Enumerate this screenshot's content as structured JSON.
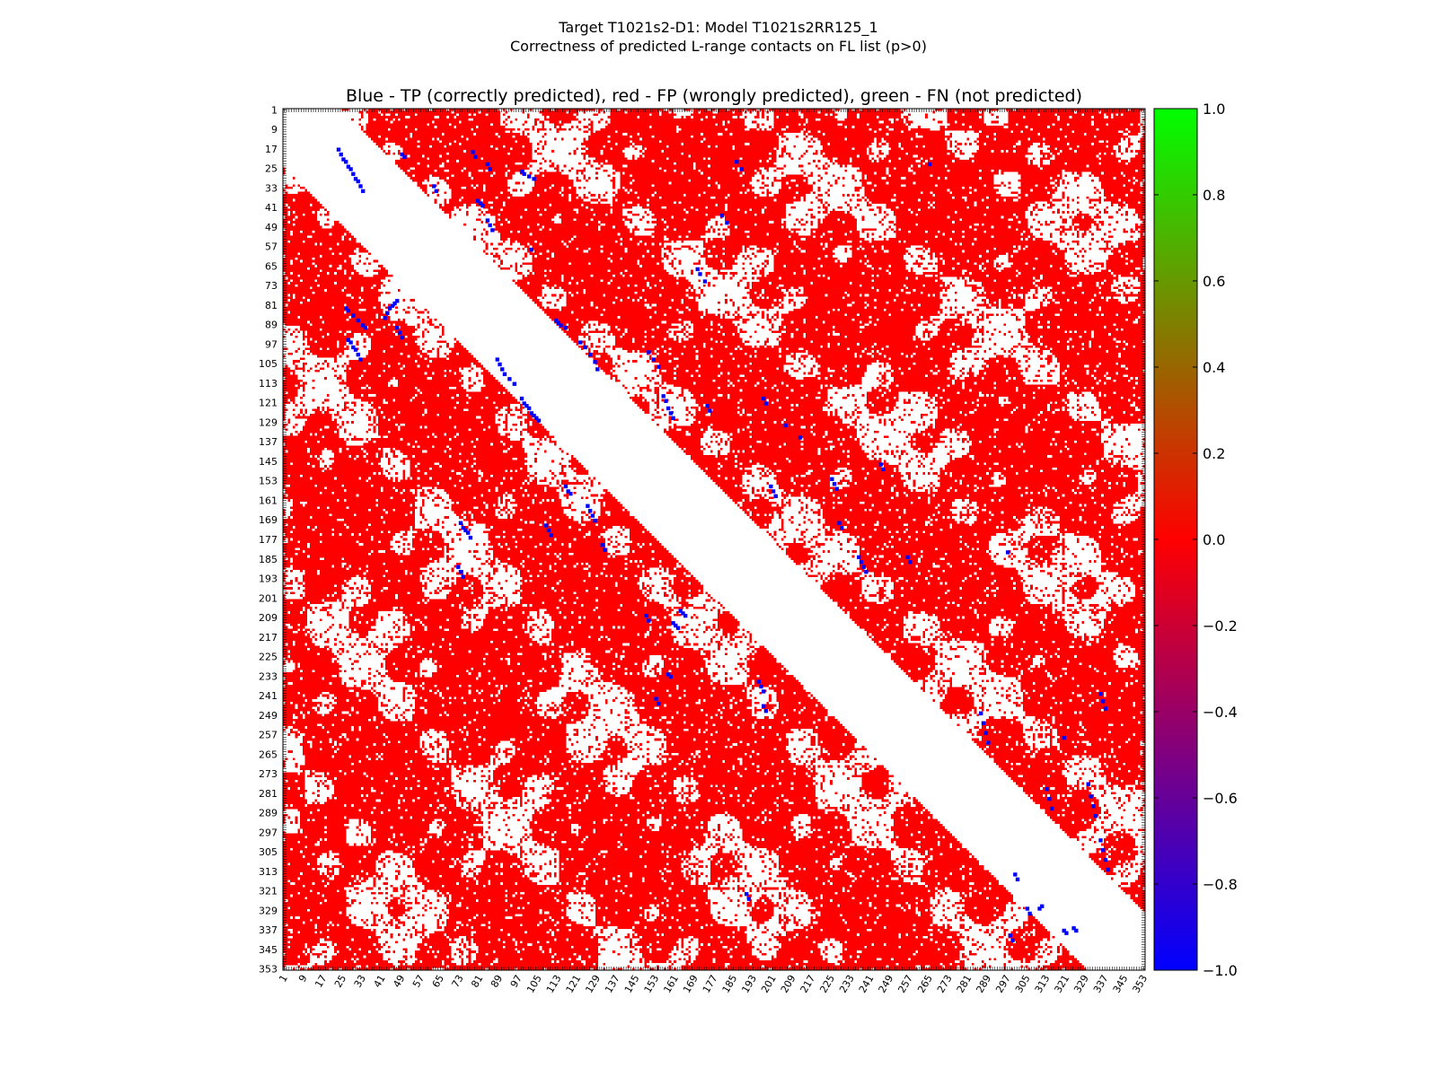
{
  "figure": {
    "title_line1": "Target T1021s2-D1: Model T1021s2RR125_1",
    "title_line2": "Correctness of predicted L-range contacts on FL list (p>0)"
  },
  "chart_data": {
    "type": "heatmap",
    "title": "Blue - TP (correctly predicted), red - FP (wrongly predicted), green - FN (not predicted)",
    "xlabel": "",
    "ylabel": "",
    "n_residues": 353,
    "x_range": [
      1,
      353
    ],
    "y_range": [
      1,
      353
    ],
    "y_inverted": true,
    "tick_labels": [
      "1",
      "9",
      "17",
      "25",
      "33",
      "41",
      "49",
      "57",
      "65",
      "73",
      "81",
      "89",
      "97",
      "105",
      "113",
      "121",
      "129",
      "137",
      "145",
      "153",
      "161",
      "169",
      "177",
      "185",
      "193",
      "201",
      "209",
      "217",
      "225",
      "233",
      "241",
      "249",
      "257",
      "265",
      "273",
      "281",
      "289",
      "297",
      "305",
      "313",
      "321",
      "329",
      "337",
      "345",
      "353"
    ],
    "colorbar": {
      "range": [
        -1.0,
        1.0
      ],
      "ticks": [
        "1.0",
        "0.8",
        "0.6",
        "0.4",
        "0.2",
        "0.0",
        "−0.2",
        "−0.4",
        "−0.6",
        "−0.8",
        "−1.0"
      ],
      "colors": [
        "#0000ff",
        "#ff0000",
        "#00ff00"
      ]
    },
    "categories": [
      {
        "label": "TP",
        "value": -1,
        "color": "#0000ff"
      },
      {
        "label": "FP",
        "value": 0,
        "color": "#ff0000"
      },
      {
        "label": "FN",
        "value": 1,
        "color": "#00ff00"
      }
    ],
    "grid": false,
    "excluded_band": {
      "min_separation": 24,
      "side": "both triangles"
    },
    "tp_contacts": [
      [
        23,
        17
      ],
      [
        24,
        19
      ],
      [
        25,
        21
      ],
      [
        26,
        22
      ],
      [
        27,
        24
      ],
      [
        28,
        25
      ],
      [
        29,
        27
      ],
      [
        30,
        29
      ],
      [
        31,
        30
      ],
      [
        32,
        32
      ],
      [
        33,
        34
      ],
      [
        26,
        82
      ],
      [
        27,
        83
      ],
      [
        29,
        85
      ],
      [
        31,
        87
      ],
      [
        33,
        89
      ],
      [
        34,
        90
      ],
      [
        27,
        95
      ],
      [
        28,
        96
      ],
      [
        29,
        98
      ],
      [
        30,
        99
      ],
      [
        31,
        101
      ],
      [
        32,
        103
      ],
      [
        42,
        86
      ],
      [
        43,
        84
      ],
      [
        44,
        82
      ],
      [
        45,
        81
      ],
      [
        46,
        80
      ],
      [
        47,
        79
      ],
      [
        47,
        90
      ],
      [
        48,
        92
      ],
      [
        49,
        94
      ],
      [
        73,
        170
      ],
      [
        74,
        172
      ],
      [
        75,
        173
      ],
      [
        76,
        174
      ],
      [
        77,
        176
      ],
      [
        72,
        188
      ],
      [
        73,
        190
      ],
      [
        74,
        192
      ],
      [
        88,
        103
      ],
      [
        89,
        105
      ],
      [
        90,
        107
      ],
      [
        91,
        109
      ],
      [
        93,
        111
      ],
      [
        95,
        113
      ],
      [
        98,
        119
      ],
      [
        99,
        121
      ],
      [
        100,
        122
      ],
      [
        101,
        123
      ],
      [
        102,
        125
      ],
      [
        103,
        126
      ],
      [
        104,
        127
      ],
      [
        105,
        128
      ],
      [
        108,
        171
      ],
      [
        109,
        173
      ],
      [
        110,
        175
      ],
      [
        116,
        155
      ],
      [
        117,
        157
      ],
      [
        118,
        158
      ],
      [
        125,
        163
      ],
      [
        126,
        165
      ],
      [
        127,
        167
      ],
      [
        128,
        169
      ],
      [
        131,
        179
      ],
      [
        132,
        181
      ],
      [
        149,
        208
      ],
      [
        150,
        210
      ],
      [
        153,
        242
      ],
      [
        154,
        244
      ],
      [
        160,
        211
      ],
      [
        161,
        212
      ],
      [
        162,
        213
      ],
      [
        158,
        232
      ],
      [
        159,
        233
      ],
      [
        163,
        206
      ],
      [
        164,
        207
      ],
      [
        165,
        208
      ],
      [
        195,
        235
      ],
      [
        196,
        237
      ],
      [
        197,
        239
      ],
      [
        197,
        245
      ],
      [
        198,
        247
      ],
      [
        190,
        322
      ],
      [
        191,
        324
      ],
      [
        300,
        314
      ],
      [
        301,
        316
      ],
      [
        305,
        328
      ],
      [
        306,
        330
      ],
      [
        310,
        328
      ],
      [
        311,
        327
      ],
      [
        298,
        339
      ],
      [
        299,
        341
      ],
      [
        320,
        337
      ],
      [
        321,
        338
      ],
      [
        324,
        336
      ],
      [
        325,
        337
      ],
      [
        49,
        19
      ],
      [
        50,
        20
      ],
      [
        62,
        32
      ],
      [
        63,
        34
      ],
      [
        78,
        18
      ],
      [
        79,
        20
      ],
      [
        80,
        38
      ],
      [
        81,
        39
      ],
      [
        82,
        40
      ],
      [
        84,
        23
      ],
      [
        85,
        25
      ],
      [
        84,
        46
      ],
      [
        85,
        48
      ],
      [
        86,
        50
      ],
      [
        98,
        26
      ],
      [
        99,
        27
      ],
      [
        101,
        28
      ],
      [
        103,
        29
      ],
      [
        102,
        58
      ],
      [
        112,
        87
      ],
      [
        113,
        88
      ],
      [
        114,
        89
      ],
      [
        116,
        90
      ],
      [
        122,
        96
      ],
      [
        124,
        98
      ],
      [
        126,
        101
      ],
      [
        128,
        104
      ],
      [
        129,
        107
      ],
      [
        150,
        100
      ],
      [
        152,
        103
      ],
      [
        154,
        106
      ],
      [
        156,
        118
      ],
      [
        157,
        120
      ],
      [
        158,
        123
      ],
      [
        159,
        125
      ],
      [
        160,
        127
      ],
      [
        170,
        66
      ],
      [
        171,
        68
      ],
      [
        173,
        71
      ],
      [
        174,
        122
      ],
      [
        175,
        124
      ],
      [
        180,
        44
      ],
      [
        182,
        47
      ],
      [
        186,
        22
      ],
      [
        188,
        25
      ],
      [
        197,
        119
      ],
      [
        198,
        121
      ],
      [
        200,
        155
      ],
      [
        201,
        157
      ],
      [
        202,
        159
      ],
      [
        206,
        130
      ],
      [
        212,
        135
      ],
      [
        225,
        152
      ],
      [
        226,
        154
      ],
      [
        227,
        156
      ],
      [
        228,
        170
      ],
      [
        229,
        172
      ],
      [
        236,
        184
      ],
      [
        237,
        186
      ],
      [
        238,
        188
      ],
      [
        239,
        190
      ],
      [
        245,
        146
      ],
      [
        246,
        148
      ],
      [
        256,
        184
      ],
      [
        257,
        186
      ],
      [
        265,
        23
      ],
      [
        286,
        248
      ],
      [
        287,
        252
      ],
      [
        288,
        256
      ],
      [
        289,
        260
      ],
      [
        297,
        182
      ],
      [
        313,
        279
      ],
      [
        314,
        283
      ],
      [
        315,
        287
      ],
      [
        320,
        258
      ],
      [
        330,
        277
      ],
      [
        331,
        282
      ],
      [
        332,
        286
      ],
      [
        333,
        290
      ],
      [
        335,
        240
      ],
      [
        336,
        243
      ],
      [
        337,
        246
      ],
      [
        335,
        300
      ],
      [
        336,
        304
      ],
      [
        337,
        308
      ],
      [
        338,
        312
      ]
    ]
  }
}
